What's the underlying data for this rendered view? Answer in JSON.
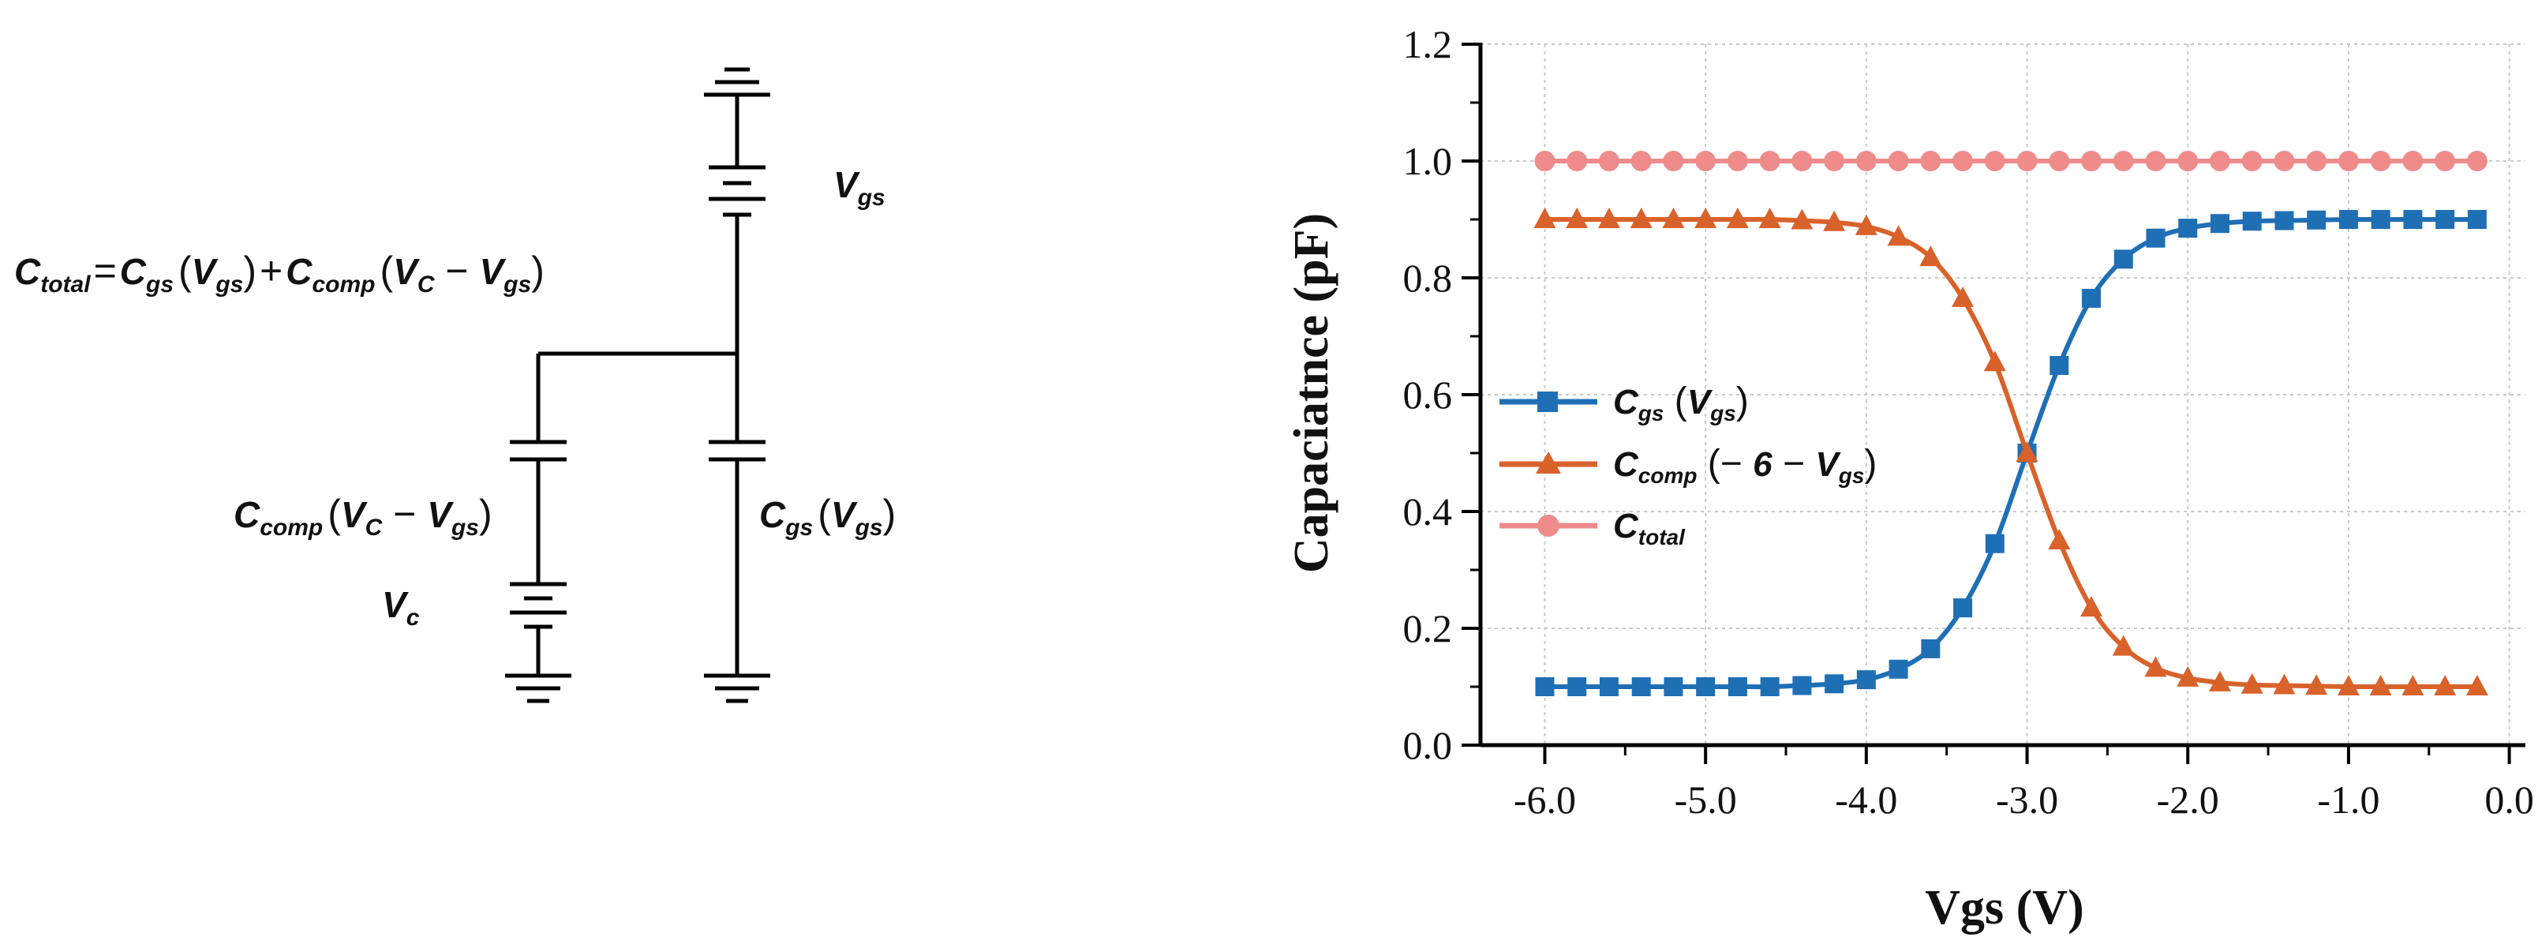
{
  "circuit": {
    "equation": {
      "c_total": "C",
      "c_total_sub": "total",
      "equals": "=",
      "c_gs": "C",
      "c_gs_sub": "gs",
      "c_gs_arg_open": "(",
      "c_gs_arg_v": "V",
      "c_gs_arg_sub": "gs",
      "c_gs_arg_close": ")",
      "plus": "+",
      "c_comp": "C",
      "c_comp_sub": "comp",
      "c_comp_arg_open": "(",
      "c_comp_arg_vc": "V",
      "c_comp_arg_vc_sub": "C",
      "c_comp_arg_minus": " − ",
      "c_comp_arg_vgs": "V",
      "c_comp_arg_vgs_sub": "gs",
      "c_comp_arg_close": ")"
    },
    "label_vgs": {
      "main": "V",
      "sub": "gs"
    },
    "label_ccomp": {
      "c": "C",
      "c_sub": "comp",
      "open": "(",
      "vc": "V",
      "vc_sub": "C",
      "minus": " − ",
      "vgs": "V",
      "vgs_sub": "gs",
      "close": ")"
    },
    "label_cgs": {
      "c": "C",
      "c_sub": "gs",
      "open": "(",
      "v": "V",
      "v_sub": "gs",
      "close": ")"
    },
    "label_vc": {
      "main": "V",
      "sub": "c"
    }
  },
  "chart_data": {
    "type": "line",
    "xlabel": "Vgs (V)",
    "ylabel": "Capaciatnce (pF)",
    "xlim": [
      -6.4,
      0.1
    ],
    "ylim": [
      0.0,
      1.2
    ],
    "x_ticks": [
      -6.0,
      -5.0,
      -4.0,
      -3.0,
      -2.0,
      -1.0,
      0.0
    ],
    "x_tick_labels": [
      "-6.0",
      "-5.0",
      "-4.0",
      "-3.0",
      "-2.0",
      "-1.0",
      "0.0"
    ],
    "y_ticks": [
      0.0,
      0.2,
      0.4,
      0.6,
      0.8,
      1.0,
      1.2
    ],
    "y_tick_labels": [
      "0.0",
      "0.2",
      "0.4",
      "0.6",
      "0.8",
      "1.0",
      "1.2"
    ],
    "grid": true,
    "legend_position": "center-left",
    "x": [
      -6.0,
      -5.8,
      -5.6,
      -5.4,
      -5.2,
      -5.0,
      -4.8,
      -4.6,
      -4.4,
      -4.2,
      -4.0,
      -3.8,
      -3.6,
      -3.4,
      -3.2,
      -3.0,
      -2.8,
      -2.6,
      -2.4,
      -2.2,
      -2.0,
      -1.8,
      -1.6,
      -1.4,
      -1.2,
      -1.0,
      -0.8,
      -0.6,
      -0.4,
      -0.2
    ],
    "series": [
      {
        "name": "Cgs (Vgs)",
        "legend": {
          "c": "C",
          "c_sub": "gs",
          "open": " (",
          "v": "V",
          "v_sub": "gs",
          "close": ")"
        },
        "color": "#1f6fb5",
        "marker": "square",
        "values": [
          0.1,
          0.1,
          0.1,
          0.1,
          0.1,
          0.1,
          0.1,
          0.1,
          0.102,
          0.105,
          0.112,
          0.13,
          0.165,
          0.235,
          0.345,
          0.5,
          0.65,
          0.765,
          0.832,
          0.868,
          0.885,
          0.893,
          0.897,
          0.898,
          0.899,
          0.9,
          0.9,
          0.9,
          0.9,
          0.9
        ]
      },
      {
        "name": "Ccomp (-6 - Vgs)",
        "legend": {
          "c": "C",
          "c_sub": "comp",
          "open": " (",
          "minus1": "− ",
          "six": "6",
          "minus2": " − ",
          "v": "V",
          "v_sub": "gs",
          "close": ")"
        },
        "color": "#d9622b",
        "marker": "triangle",
        "values": [
          0.9,
          0.9,
          0.9,
          0.9,
          0.9,
          0.9,
          0.9,
          0.9,
          0.898,
          0.895,
          0.888,
          0.87,
          0.835,
          0.765,
          0.655,
          0.5,
          0.35,
          0.235,
          0.168,
          0.132,
          0.115,
          0.107,
          0.103,
          0.102,
          0.101,
          0.1,
          0.1,
          0.1,
          0.1,
          0.1
        ]
      },
      {
        "name": "Ctotal",
        "legend": {
          "c": "C",
          "c_sub": "total"
        },
        "color": "#ef8b8b",
        "marker": "circle",
        "values": [
          1.0,
          1.0,
          1.0,
          1.0,
          1.0,
          1.0,
          1.0,
          1.0,
          1.0,
          1.0,
          1.0,
          1.0,
          1.0,
          1.0,
          1.0,
          1.0,
          1.0,
          1.0,
          1.0,
          1.0,
          1.0,
          1.0,
          1.0,
          1.0,
          1.0,
          1.0,
          1.0,
          1.0,
          1.0,
          1.0
        ]
      }
    ]
  }
}
